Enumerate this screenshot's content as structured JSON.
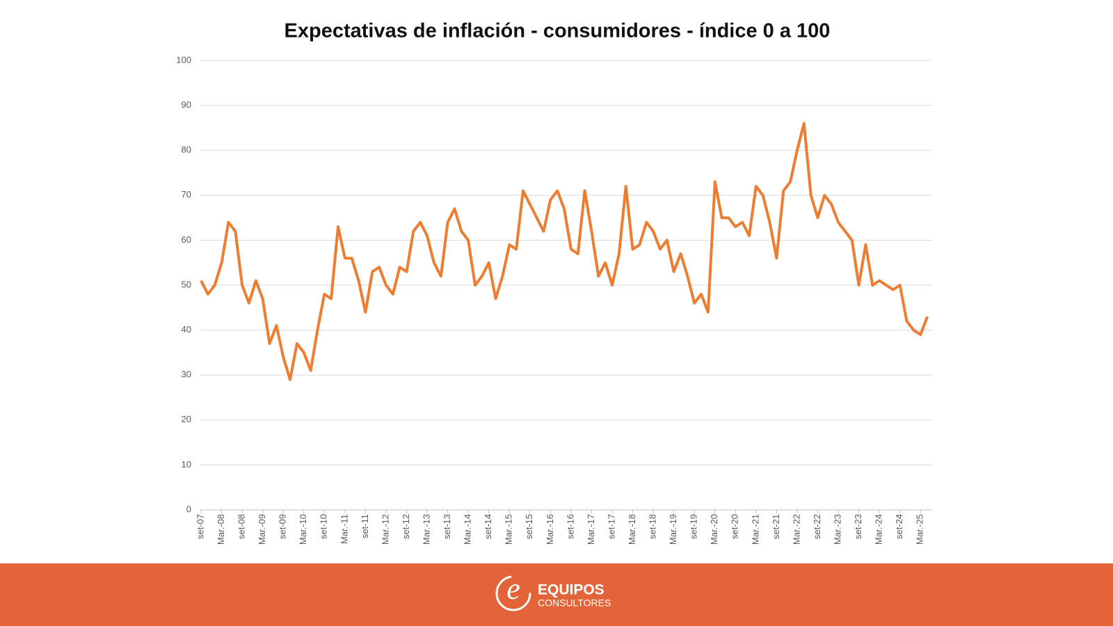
{
  "chart_data": {
    "type": "line",
    "title": "Expectativas de inflación - consumidores - índice 0 a 100",
    "categories": [
      "set-07",
      null,
      null,
      "Mar.-08",
      null,
      null,
      "set-08",
      null,
      null,
      "Mar.-09",
      null,
      null,
      "set-09",
      null,
      null,
      "Mar.-10",
      null,
      null,
      "set-10",
      null,
      null,
      "Mar.-11",
      null,
      null,
      "set-11",
      null,
      null,
      "Mar.-12",
      null,
      null,
      "set-12",
      null,
      null,
      "Mar.-13",
      null,
      null,
      "set-13",
      null,
      null,
      "Mar.-14",
      null,
      null,
      "set-14",
      null,
      null,
      "Mar.-15",
      null,
      null,
      "set-15",
      null,
      null,
      "Mar.-16",
      null,
      null,
      "set-16",
      null,
      null,
      "Mar.-17",
      null,
      null,
      "set-17",
      null,
      null,
      "Mar.-18",
      null,
      null,
      "set-18",
      null,
      null,
      "Mar.-19",
      null,
      null,
      "set-19",
      null,
      null,
      "Mar.-20",
      null,
      null,
      "set-20",
      null,
      null,
      "Mar.-21",
      null,
      null,
      "set-21",
      null,
      null,
      "Mar.-22",
      null,
      null,
      "set-22",
      null,
      null,
      "Mar.-23",
      null,
      null,
      "set-23",
      null,
      null,
      "Mar.-24",
      null,
      null,
      "set-24",
      null,
      null,
      "Mar.-25",
      null
    ],
    "series": [
      {
        "color": "#ed7d31",
        "values": [
          51,
          48,
          50,
          55,
          64,
          62,
          50,
          46,
          51,
          47,
          37,
          41,
          34,
          29,
          37,
          35,
          31,
          40,
          48,
          47,
          63,
          56,
          56,
          51,
          44,
          53,
          54,
          50,
          48,
          54,
          53,
          62,
          64,
          61,
          55,
          52,
          64,
          67,
          62,
          60,
          50,
          52,
          55,
          47,
          52,
          59,
          58,
          71,
          68,
          65,
          62,
          69,
          71,
          67,
          58,
          57,
          71,
          62,
          52,
          55,
          50,
          57,
          72,
          58,
          59,
          64,
          62,
          58,
          60,
          53,
          57,
          52,
          46,
          48,
          44,
          73,
          65,
          65,
          63,
          64,
          61,
          72,
          70,
          64,
          56,
          71,
          73,
          80,
          86,
          70,
          65,
          70,
          68,
          64,
          62,
          60,
          50,
          59,
          50,
          51,
          50,
          49,
          50,
          42,
          40,
          39,
          43
        ]
      }
    ],
    "ylim": [
      0,
      100
    ],
    "yticks": [
      0,
      10,
      20,
      30,
      40,
      50,
      60,
      70,
      80,
      90,
      100
    ],
    "grid": true
  },
  "footer": {
    "logo": "e",
    "brand": "EQUIPOS",
    "tagline": "CONSULTORES"
  }
}
